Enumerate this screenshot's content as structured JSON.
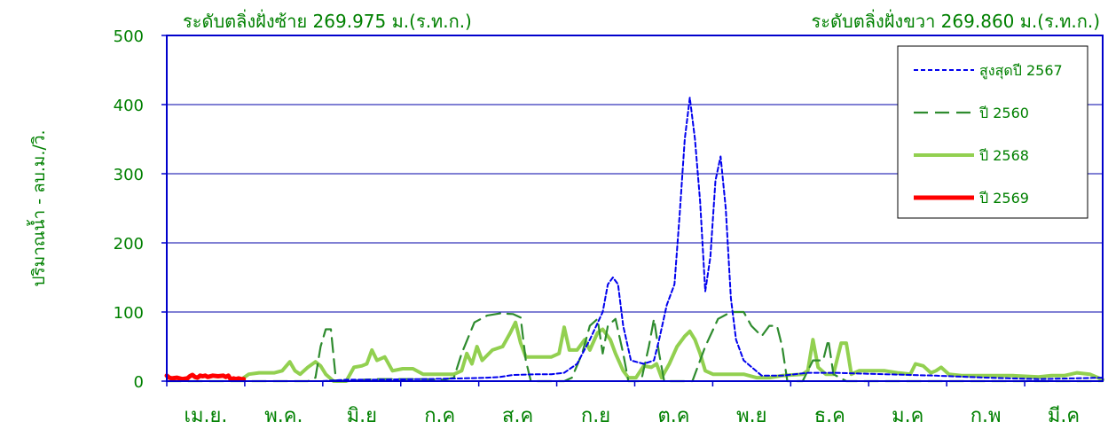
{
  "chart_data": {
    "type": "line",
    "title_left": "ระดับตลิ่งฝั่งซ้าย 269.975 ม.(ร.ท.ก.)",
    "title_right": "ระดับตลิ่งฝั่งขวา 269.860 ม.(ร.ท.ก.)",
    "ylabel": "ปริมาณน้ำ - ลบ.ม./วิ.",
    "ylim": [
      0,
      500
    ],
    "yticks": [
      "0",
      "100",
      "200",
      "300",
      "400",
      "500"
    ],
    "gridlines": [
      100,
      200,
      300,
      400
    ],
    "xlim": [
      0,
      365
    ],
    "months": [
      "เม.ย.",
      "พ.ค.",
      "มิ.ย",
      "ก.ค",
      "ส.ค",
      "ก.ย",
      "ต.ค",
      "พ.ย",
      "ธ.ค",
      "ม.ค",
      "ก.พ",
      "มี.ค"
    ],
    "legend_position": "top-right",
    "colors": {
      "axis": "#0000cc",
      "text": "#008000",
      "grid": "#0000aa"
    },
    "series": [
      {
        "name": "สูงสุดปี 2567",
        "color": "#0000ee",
        "style": "dotted",
        "points": [
          [
            0,
            0
          ],
          [
            60,
            0
          ],
          [
            70,
            2
          ],
          [
            80,
            2
          ],
          [
            100,
            3
          ],
          [
            115,
            4
          ],
          [
            125,
            5
          ],
          [
            130,
            6
          ],
          [
            135,
            9
          ],
          [
            145,
            10
          ],
          [
            150,
            10
          ],
          [
            155,
            12
          ],
          [
            160,
            25
          ],
          [
            165,
            60
          ],
          [
            170,
            100
          ],
          [
            172,
            140
          ],
          [
            174,
            150
          ],
          [
            176,
            140
          ],
          [
            178,
            80
          ],
          [
            181,
            30
          ],
          [
            186,
            25
          ],
          [
            190,
            30
          ],
          [
            192,
            60
          ],
          [
            195,
            110
          ],
          [
            198,
            140
          ],
          [
            200,
            240
          ],
          [
            202,
            350
          ],
          [
            204,
            410
          ],
          [
            206,
            350
          ],
          [
            208,
            260
          ],
          [
            210,
            130
          ],
          [
            212,
            180
          ],
          [
            214,
            290
          ],
          [
            216,
            325
          ],
          [
            218,
            250
          ],
          [
            220,
            120
          ],
          [
            222,
            60
          ],
          [
            225,
            30
          ],
          [
            232,
            8
          ],
          [
            240,
            8
          ],
          [
            250,
            12
          ],
          [
            260,
            12
          ],
          [
            280,
            10
          ],
          [
            300,
            8
          ],
          [
            320,
            5
          ],
          [
            340,
            3
          ],
          [
            365,
            5
          ]
        ]
      },
      {
        "name": "ปี 2560",
        "color": "#2e8b2e",
        "style": "dashed",
        "points": [
          [
            0,
            0
          ],
          [
            55,
            0
          ],
          [
            58,
            5
          ],
          [
            60,
            50
          ],
          [
            62,
            75
          ],
          [
            64,
            75
          ],
          [
            66,
            0
          ],
          [
            72,
            0
          ],
          [
            77,
            2
          ],
          [
            82,
            3
          ],
          [
            100,
            3
          ],
          [
            108,
            2
          ],
          [
            112,
            5
          ],
          [
            115,
            40
          ],
          [
            120,
            85
          ],
          [
            125,
            95
          ],
          [
            130,
            98
          ],
          [
            135,
            97
          ],
          [
            138,
            92
          ],
          [
            140,
            30
          ],
          [
            142,
            0
          ],
          [
            155,
            0
          ],
          [
            158,
            5
          ],
          [
            162,
            40
          ],
          [
            165,
            80
          ],
          [
            168,
            90
          ],
          [
            170,
            40
          ],
          [
            172,
            80
          ],
          [
            175,
            90
          ],
          [
            178,
            40
          ],
          [
            180,
            0
          ],
          [
            185,
            0
          ],
          [
            188,
            50
          ],
          [
            190,
            90
          ],
          [
            192,
            40
          ],
          [
            194,
            0
          ],
          [
            205,
            0
          ],
          [
            210,
            50
          ],
          [
            215,
            90
          ],
          [
            220,
            100
          ],
          [
            225,
            100
          ],
          [
            228,
            80
          ],
          [
            232,
            65
          ],
          [
            235,
            80
          ],
          [
            238,
            80
          ],
          [
            240,
            50
          ],
          [
            242,
            0
          ],
          [
            248,
            0
          ],
          [
            252,
            30
          ],
          [
            256,
            30
          ],
          [
            258,
            60
          ],
          [
            260,
            10
          ],
          [
            265,
            0
          ],
          [
            365,
            0
          ]
        ]
      },
      {
        "name": "ปี 2568",
        "color": "#92d050",
        "style": "solid",
        "points": [
          [
            30,
            5
          ],
          [
            32,
            10
          ],
          [
            36,
            12
          ],
          [
            42,
            12
          ],
          [
            45,
            15
          ],
          [
            48,
            28
          ],
          [
            50,
            15
          ],
          [
            52,
            10
          ],
          [
            55,
            20
          ],
          [
            58,
            28
          ],
          [
            60,
            22
          ],
          [
            62,
            10
          ],
          [
            65,
            0
          ],
          [
            70,
            0
          ],
          [
            73,
            20
          ],
          [
            76,
            22
          ],
          [
            78,
            25
          ],
          [
            80,
            45
          ],
          [
            82,
            30
          ],
          [
            85,
            35
          ],
          [
            88,
            15
          ],
          [
            92,
            18
          ],
          [
            96,
            18
          ],
          [
            100,
            10
          ],
          [
            108,
            10
          ],
          [
            112,
            10
          ],
          [
            115,
            15
          ],
          [
            117,
            40
          ],
          [
            119,
            25
          ],
          [
            121,
            50
          ],
          [
            123,
            30
          ],
          [
            127,
            45
          ],
          [
            131,
            50
          ],
          [
            134,
            70
          ],
          [
            136,
            85
          ],
          [
            138,
            55
          ],
          [
            140,
            35
          ],
          [
            145,
            35
          ],
          [
            150,
            35
          ],
          [
            153,
            40
          ],
          [
            155,
            78
          ],
          [
            157,
            45
          ],
          [
            160,
            45
          ],
          [
            163,
            60
          ],
          [
            165,
            45
          ],
          [
            168,
            70
          ],
          [
            170,
            75
          ],
          [
            173,
            60
          ],
          [
            175,
            40
          ],
          [
            178,
            15
          ],
          [
            180,
            5
          ],
          [
            183,
            5
          ],
          [
            186,
            22
          ],
          [
            189,
            20
          ],
          [
            191,
            25
          ],
          [
            193,
            5
          ],
          [
            196,
            25
          ],
          [
            199,
            50
          ],
          [
            202,
            65
          ],
          [
            204,
            72
          ],
          [
            206,
            60
          ],
          [
            208,
            40
          ],
          [
            210,
            15
          ],
          [
            213,
            10
          ],
          [
            220,
            10
          ],
          [
            225,
            10
          ],
          [
            230,
            5
          ],
          [
            235,
            5
          ],
          [
            240,
            8
          ],
          [
            248,
            10
          ],
          [
            250,
            15
          ],
          [
            252,
            60
          ],
          [
            254,
            20
          ],
          [
            257,
            10
          ],
          [
            260,
            10
          ],
          [
            263,
            55
          ],
          [
            265,
            55
          ],
          [
            267,
            10
          ],
          [
            270,
            15
          ],
          [
            280,
            15
          ],
          [
            285,
            12
          ],
          [
            290,
            10
          ],
          [
            292,
            25
          ],
          [
            295,
            22
          ],
          [
            298,
            12
          ],
          [
            300,
            15
          ],
          [
            302,
            20
          ],
          [
            305,
            10
          ],
          [
            310,
            8
          ],
          [
            320,
            8
          ],
          [
            330,
            8
          ],
          [
            340,
            6
          ],
          [
            345,
            8
          ],
          [
            350,
            8
          ],
          [
            355,
            12
          ],
          [
            360,
            10
          ],
          [
            365,
            2
          ]
        ]
      },
      {
        "name": "ปี 2569",
        "color": "#ff0000",
        "style": "solid",
        "points": [
          [
            0,
            8
          ],
          [
            1,
            5
          ],
          [
            2,
            4
          ],
          [
            4,
            5
          ],
          [
            6,
            3
          ],
          [
            8,
            4
          ],
          [
            9,
            7
          ],
          [
            10,
            9
          ],
          [
            11,
            6
          ],
          [
            12,
            5
          ],
          [
            13,
            8
          ],
          [
            14,
            7
          ],
          [
            15,
            8
          ],
          [
            16,
            6
          ],
          [
            18,
            8
          ],
          [
            20,
            7
          ],
          [
            22,
            8
          ],
          [
            23,
            6
          ],
          [
            24,
            8
          ],
          [
            25,
            2
          ],
          [
            26,
            4
          ],
          [
            27,
            3
          ],
          [
            28,
            4
          ],
          [
            29,
            3
          ],
          [
            30,
            3
          ]
        ]
      }
    ]
  }
}
